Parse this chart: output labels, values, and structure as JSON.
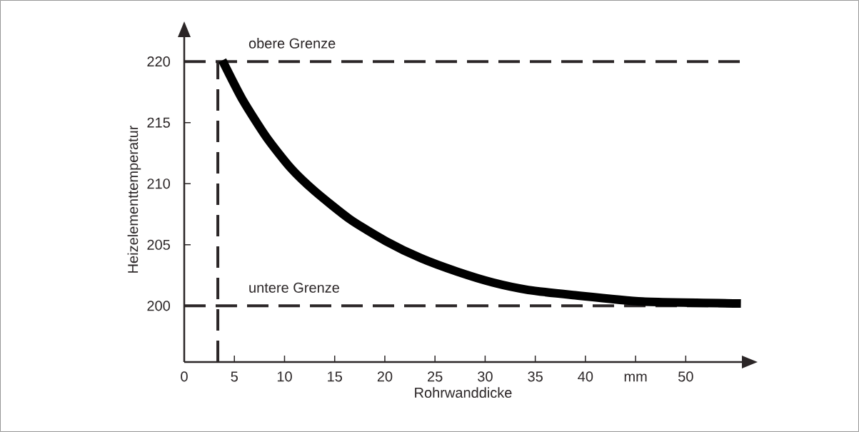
{
  "chart_data": {
    "type": "line",
    "xlabel": "Rohrwanddicke",
    "ylabel": "Heizelementtemperatur",
    "xlim": [
      0,
      55.6
    ],
    "ylim": [
      195.4,
      222
    ],
    "xticks": [
      0,
      5,
      10,
      15,
      20,
      25,
      30,
      35,
      40,
      {
        "value": 45,
        "label": "mm"
      },
      50
    ],
    "yticks": [
      200,
      205,
      210,
      215,
      220
    ],
    "series": [
      {
        "color": "#000000",
        "x": [
          3.8,
          5.8,
          8.2,
          10.6,
          13.0,
          16.5,
          20.1,
          23.6,
          27.2,
          30.8,
          34.3,
          38.6,
          45.7,
          55.5
        ],
        "values": [
          220.1,
          216.9,
          213.8,
          211.3,
          209.4,
          207.1,
          205.3,
          203.9,
          202.8,
          201.9,
          201.3,
          200.9,
          200.35,
          200.2
        ]
      }
    ],
    "ref_lines": [
      {
        "axis": "y",
        "value": 220,
        "label": "obere Grenze",
        "color": "#2b2627",
        "line_style": "dashed"
      },
      {
        "axis": "y",
        "value": 200,
        "label": "untere Grenze",
        "color": "#2b2627",
        "line_style": "dashed"
      },
      {
        "axis": "x",
        "value": 3.35,
        "color": "#2b2627",
        "line_style": "dashed"
      }
    ],
    "grid": false,
    "marker": "none",
    "line_style": "solid"
  }
}
